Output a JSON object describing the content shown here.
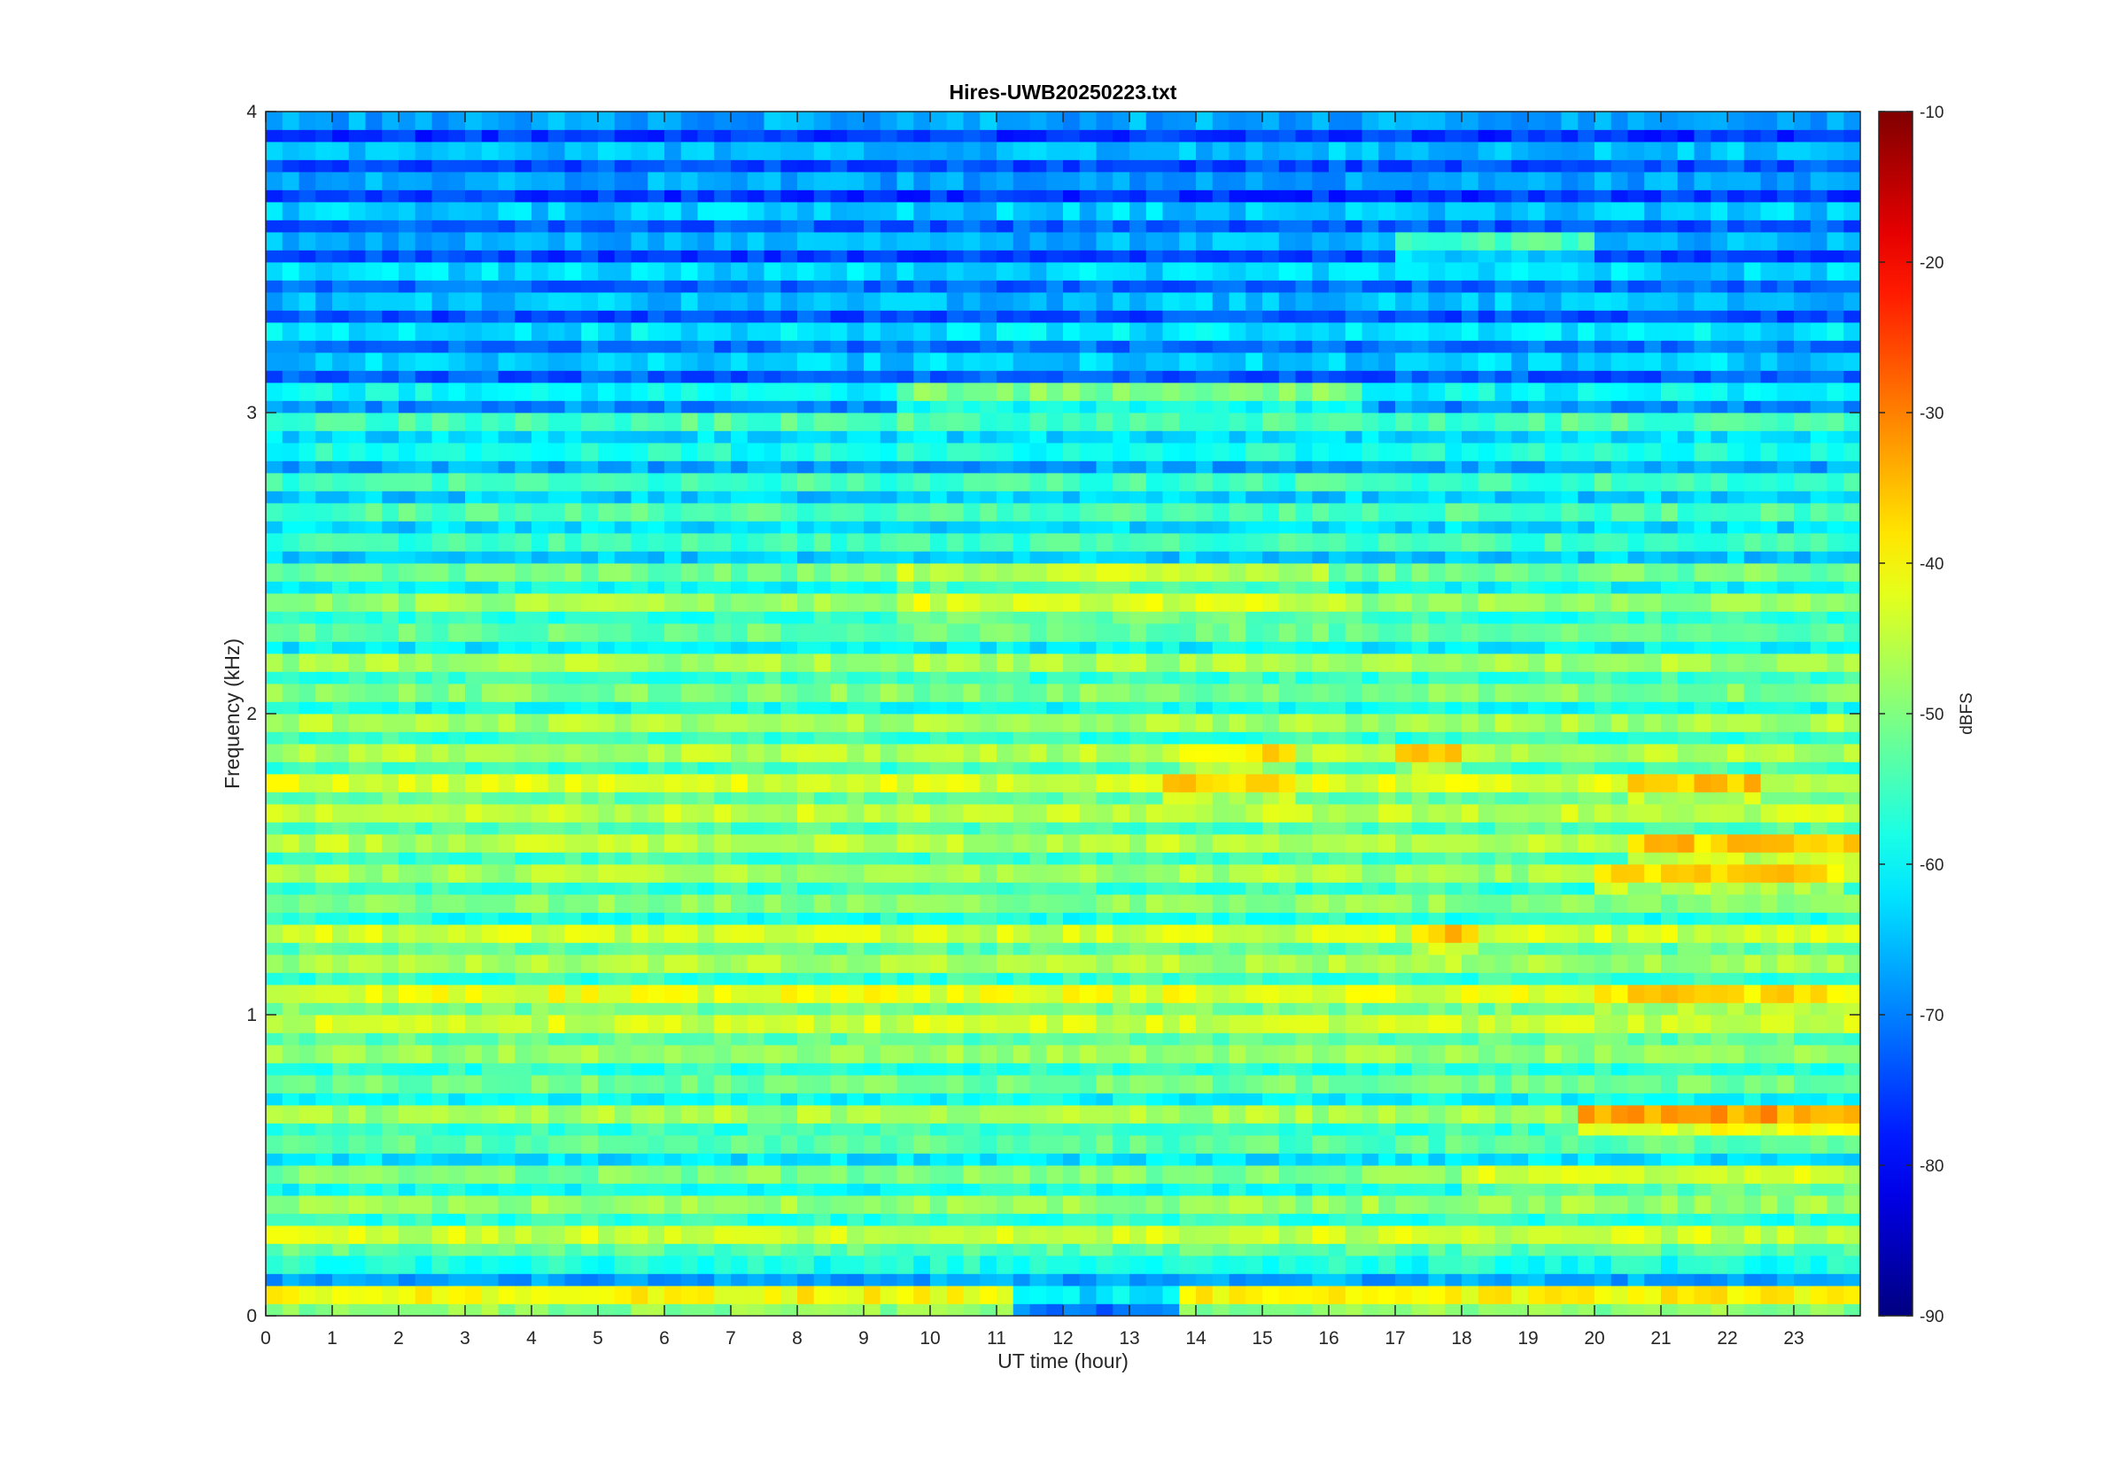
{
  "chart_data": {
    "type": "heatmap",
    "title": "Hires-UWB20250223.txt",
    "xlabel": "UT time (hour)",
    "ylabel": "Frequency (kHz)",
    "xlim": [
      0,
      24
    ],
    "ylim": [
      0,
      4
    ],
    "x_ticks": [
      0,
      1,
      2,
      3,
      4,
      5,
      6,
      7,
      8,
      9,
      10,
      11,
      12,
      13,
      14,
      15,
      16,
      17,
      18,
      19,
      20,
      21,
      22,
      23
    ],
    "x_tick_labels": [
      "0",
      "1",
      "2",
      "3",
      "4",
      "5",
      "6",
      "7",
      "8",
      "9",
      "10",
      "11",
      "12",
      "13",
      "14",
      "15",
      "16",
      "17",
      "18",
      "19",
      "20",
      "21",
      "22",
      "23"
    ],
    "y_ticks": [
      0,
      1,
      2,
      3,
      4
    ],
    "y_tick_labels": [
      "0",
      "1",
      "2",
      "3",
      "4"
    ],
    "colorbar": {
      "label": "dBFS",
      "clim": [
        -90,
        -10
      ],
      "ticks": [
        -90,
        -80,
        -70,
        -60,
        -50,
        -40,
        -30,
        -20,
        -10
      ],
      "tick_labels": [
        "-90",
        "-80",
        "-70",
        "-60",
        "-50",
        "-40",
        "-30",
        "-20",
        "-10"
      ],
      "colormap": "jet"
    },
    "grid": false,
    "colors": {
      "background": "#ffffff",
      "axis": "#262626"
    },
    "band_spacing_khz": 0.1,
    "bands": [
      {
        "f": 0.05,
        "level": -40,
        "events": [
          {
            "t0": 11.2,
            "t1": 13.8,
            "level": -62
          }
        ]
      },
      {
        "f": 0.15,
        "level": -58
      },
      {
        "f": 0.25,
        "level": -44
      },
      {
        "f": 0.35,
        "level": -48
      },
      {
        "f": 0.45,
        "level": -50,
        "events": [
          {
            "t0": 18.0,
            "t1": 24.0,
            "level": -44
          }
        ]
      },
      {
        "f": 0.55,
        "level": -53
      },
      {
        "f": 0.65,
        "level": -47,
        "events": [
          {
            "t0": 19.7,
            "t1": 24.0,
            "level": -33
          }
        ]
      },
      {
        "f": 0.75,
        "level": -51
      },
      {
        "f": 0.85,
        "level": -48
      },
      {
        "f": 0.95,
        "level": -44
      },
      {
        "f": 1.05,
        "level": -42,
        "events": [
          {
            "t0": 20.0,
            "t1": 24.0,
            "level": -38
          }
        ]
      },
      {
        "f": 1.15,
        "level": -47
      },
      {
        "f": 1.25,
        "level": -44,
        "events": [
          {
            "t0": 17.3,
            "t1": 18.3,
            "level": -36
          }
        ]
      },
      {
        "f": 1.35,
        "level": -49
      },
      {
        "f": 1.45,
        "level": -47,
        "events": [
          {
            "t0": 20.0,
            "t1": 23.7,
            "level": -37
          }
        ]
      },
      {
        "f": 1.55,
        "level": -46,
        "events": [
          {
            "t0": 20.6,
            "t1": 24.0,
            "level": -36
          }
        ]
      },
      {
        "f": 1.65,
        "level": -45
      },
      {
        "f": 1.75,
        "level": -43,
        "events": [
          {
            "t0": 13.5,
            "t1": 15.5,
            "level": -37
          },
          {
            "t0": 20.6,
            "t1": 22.6,
            "level": -36
          }
        ]
      },
      {
        "f": 1.85,
        "level": -46,
        "events": [
          {
            "t0": 13.7,
            "t1": 15.6,
            "level": -38
          },
          {
            "t0": 17.0,
            "t1": 18.0,
            "level": -38
          }
        ]
      },
      {
        "f": 1.95,
        "level": -47
      },
      {
        "f": 2.05,
        "level": -50
      },
      {
        "f": 2.15,
        "level": -47
      },
      {
        "f": 2.25,
        "level": -52
      },
      {
        "f": 2.35,
        "level": -48,
        "events": [
          {
            "t0": 9.6,
            "t1": 16.6,
            "level": -43
          }
        ]
      },
      {
        "f": 2.45,
        "level": -51,
        "events": [
          {
            "t0": 9.6,
            "t1": 16.0,
            "level": -45
          }
        ]
      },
      {
        "f": 2.55,
        "level": -55
      },
      {
        "f": 2.65,
        "level": -54
      },
      {
        "f": 2.75,
        "level": -55
      },
      {
        "f": 2.85,
        "level": -58
      },
      {
        "f": 2.95,
        "level": -54
      },
      {
        "f": 3.05,
        "level": -60,
        "events": [
          {
            "t0": 9.6,
            "t1": 16.6,
            "level": -50
          }
        ]
      },
      {
        "f": 3.15,
        "level": -64
      },
      {
        "f": 3.25,
        "level": -62
      },
      {
        "f": 3.35,
        "level": -65
      },
      {
        "f": 3.45,
        "level": -63
      },
      {
        "f": 3.55,
        "level": -66,
        "events": [
          {
            "t0": 17.0,
            "t1": 20.0,
            "level": -54
          }
        ]
      },
      {
        "f": 3.65,
        "level": -64
      },
      {
        "f": 3.75,
        "level": -67
      },
      {
        "f": 3.85,
        "level": -65
      },
      {
        "f": 3.95,
        "level": -67
      }
    ]
  }
}
